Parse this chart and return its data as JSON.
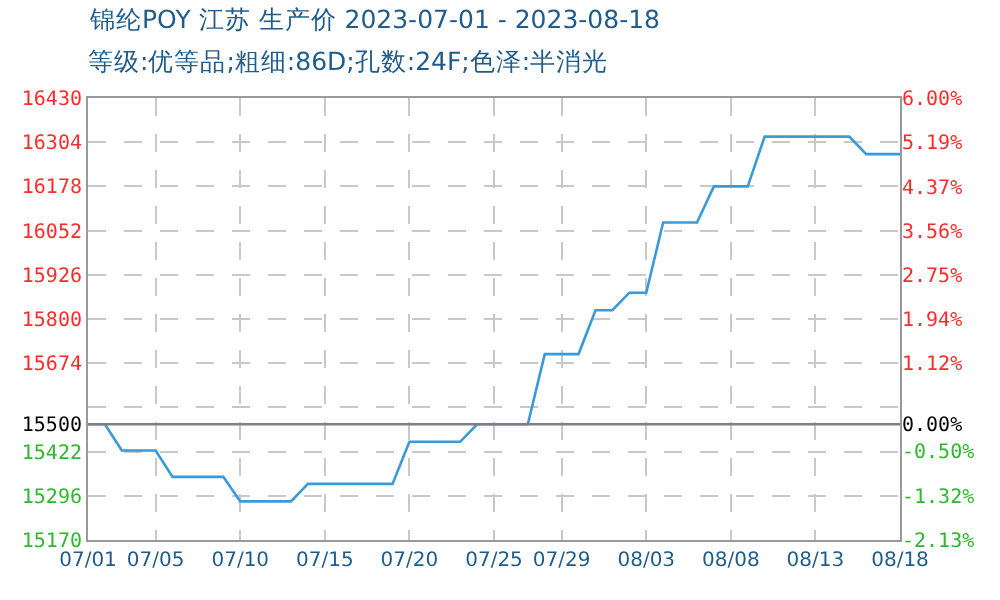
{
  "chart_data": {
    "type": "line",
    "title": "锦纶POY 江苏 生产价 2023-07-01 - 2023-08-18",
    "subtitle": "等级:优等品;粗细:86D;孔数:24F;色泽:半消光",
    "x": [
      "2023-07-01",
      "2023-07-02",
      "2023-07-03",
      "2023-07-04",
      "2023-07-05",
      "2023-07-06",
      "2023-07-07",
      "2023-07-08",
      "2023-07-09",
      "2023-07-10",
      "2023-07-11",
      "2023-07-12",
      "2023-07-13",
      "2023-07-14",
      "2023-07-15",
      "2023-07-16",
      "2023-07-17",
      "2023-07-18",
      "2023-07-19",
      "2023-07-20",
      "2023-07-21",
      "2023-07-22",
      "2023-07-23",
      "2023-07-24",
      "2023-07-25",
      "2023-07-26",
      "2023-07-27",
      "2023-07-28",
      "2023-07-29",
      "2023-07-30",
      "2023-07-31",
      "2023-08-01",
      "2023-08-02",
      "2023-08-03",
      "2023-08-04",
      "2023-08-05",
      "2023-08-06",
      "2023-08-07",
      "2023-08-08",
      "2023-08-09",
      "2023-08-10",
      "2023-08-11",
      "2023-08-12",
      "2023-08-13",
      "2023-08-14",
      "2023-08-15",
      "2023-08-16",
      "2023-08-17",
      "2023-08-18"
    ],
    "series": [
      {
        "color": "#3a9ad9",
        "values": [
          15500,
          15500,
          15425,
          15425,
          15425,
          15350,
          15350,
          15350,
          15350,
          15280,
          15280,
          15280,
          15280,
          15330,
          15330,
          15330,
          15330,
          15330,
          15330,
          15450,
          15450,
          15450,
          15450,
          15500,
          15500,
          15500,
          15500,
          15700,
          15700,
          15700,
          15825,
          15825,
          15875,
          15875,
          16075,
          16075,
          16075,
          16178,
          16178,
          16178,
          16320,
          16320,
          16320,
          16320,
          16320,
          16320,
          16270,
          16270,
          16270
        ]
      }
    ],
    "xlim": [
      "2023-07-01",
      "2023-08-18"
    ],
    "xticks": [
      {
        "value": "2023-07-01",
        "label": "07/01"
      },
      {
        "value": "2023-07-05",
        "label": "07/05"
      },
      {
        "value": "2023-07-10",
        "label": "07/10"
      },
      {
        "value": "2023-07-15",
        "label": "07/15"
      },
      {
        "value": "2023-07-20",
        "label": "07/20"
      },
      {
        "value": "2023-07-25",
        "label": "07/25"
      },
      {
        "value": "2023-07-29",
        "label": "07/29"
      },
      {
        "value": "2023-08-03",
        "label": "08/03"
      },
      {
        "value": "2023-08-08",
        "label": "08/08"
      },
      {
        "value": "2023-08-13",
        "label": "08/13"
      },
      {
        "value": "2023-08-18",
        "label": "08/18"
      }
    ],
    "ylim": [
      15170,
      16430
    ],
    "yticks": [
      15170,
      15296,
      15422,
      15500,
      {
        "value": 15548,
        "label": null
      },
      15674,
      15800,
      15926,
      16052,
      16178,
      16304,
      16430
    ],
    "y2lim": [
      -2.13,
      6.0
    ],
    "y2ticks": [
      {
        "value": -2.13,
        "label": "-2.13%"
      },
      {
        "value": -1.32,
        "label": "-1.32%"
      },
      {
        "value": -0.5,
        "label": "-0.50%"
      },
      {
        "value": 0,
        "label": "0.00%"
      },
      {
        "value": 1.12,
        "label": "1.12%"
      },
      {
        "value": 1.94,
        "label": "1.94%"
      },
      {
        "value": 2.75,
        "label": "2.75%"
      },
      {
        "value": 3.56,
        "label": "3.56%"
      },
      {
        "value": 4.37,
        "label": "4.37%"
      },
      {
        "value": 5.19,
        "label": "5.19%"
      },
      {
        "value": 6.0,
        "label": "6.00%"
      }
    ],
    "ref_lines": [
      {
        "axis": "y",
        "value": 15500,
        "color": "#808080",
        "line_style": "solid"
      }
    ],
    "grid": true,
    "marker": "none",
    "line_style": "solid"
  }
}
